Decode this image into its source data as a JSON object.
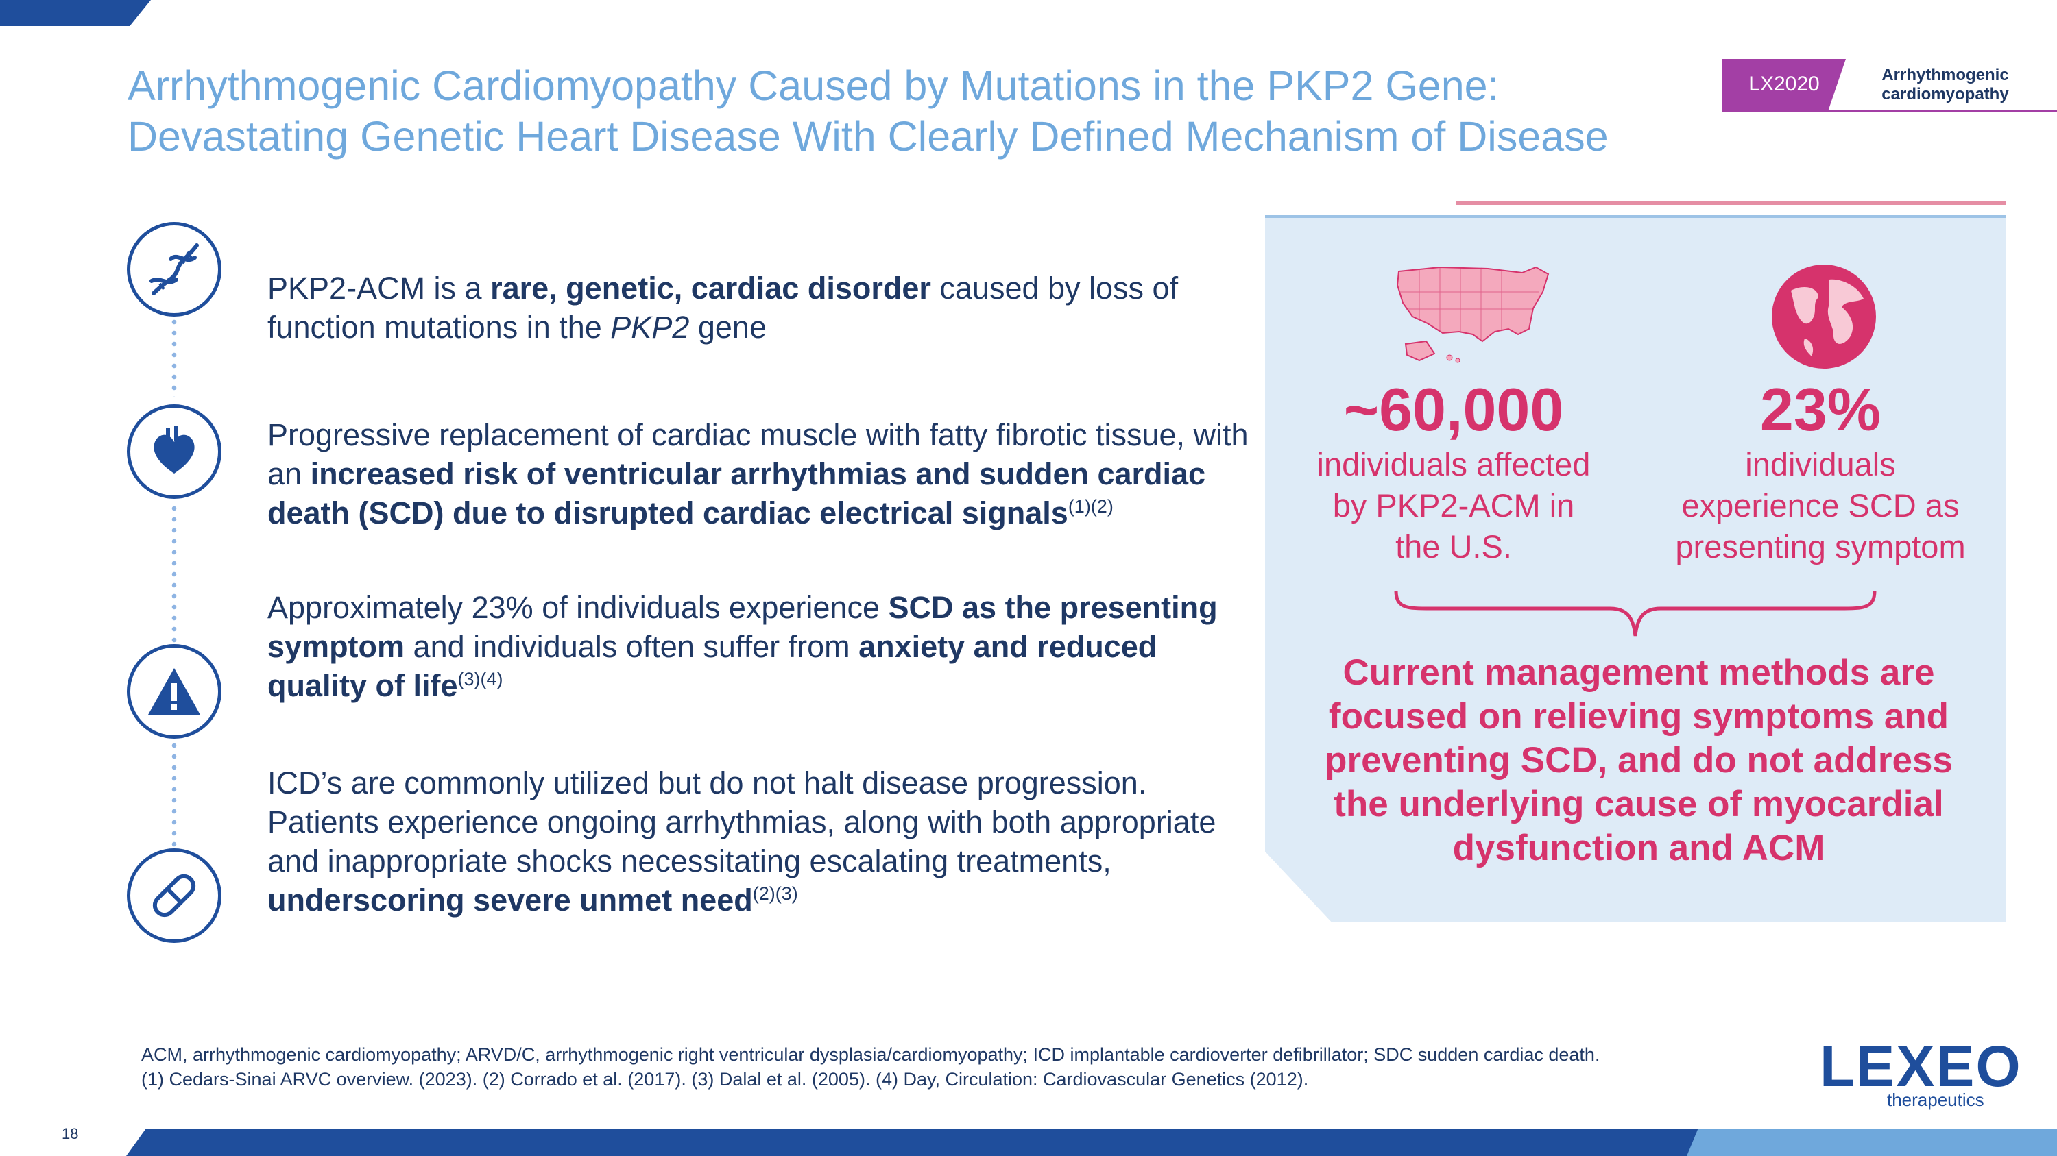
{
  "header": {
    "title_line1": "Arrhythmogenic Cardiomyopathy Caused by Mutations in the PKP2 Gene:",
    "title_line2": "Devastating Genetic Heart Disease With Clearly Defined Mechanism of Disease",
    "badge": "LX2020",
    "badge_label_line1": "Arrhythmogenic",
    "badge_label_line2": "cardiomyopathy"
  },
  "icons": [
    "dna-icon",
    "heart-icon",
    "warning-icon",
    "pill-icon"
  ],
  "bullets": {
    "b1": {
      "t1": "PKP2-ACM is a ",
      "b1": "rare, genetic, cardiac disorder",
      "t2": " caused by loss of function mutations in the ",
      "i1": "PKP2",
      "t3": " gene"
    },
    "b2": {
      "t1": "Progressive replacement of cardiac muscle with fatty fibrotic tissue, with an ",
      "b1": "increased risk of ventricular arrhythmias and sudden cardiac death (SCD) due to disrupted cardiac electrical signals",
      "sup": "(1)(2)"
    },
    "b3": {
      "t1": "Approximately 23% of individuals experience ",
      "b1": "SCD as the presenting symptom",
      "t2": " and individuals often suffer from ",
      "b2": "anxiety and reduced quality of life",
      "sup": "(3)(4)"
    },
    "b4": {
      "t1": "ICD’s are commonly utilized but do not halt disease progression. Patients experience ongoing arrhythmias, along with both appropriate and inappropriate shocks necessitating escalating treatments, ",
      "b1": "underscoring severe unmet need",
      "sup": "(2)(3)"
    }
  },
  "stats": {
    "left": {
      "number": "~60,000",
      "line1": "individuals affected",
      "line2": "by PKP2-ACM in",
      "line3": "the U.S."
    },
    "right": {
      "number": "23%",
      "line1": "individuals",
      "line2": "experience SCD as",
      "line3": "presenting symptom"
    }
  },
  "conclusion": {
    "line1": "Current management methods are",
    "line2": "focused on relieving symptoms and",
    "line3": "preventing SCD, and do not address",
    "line4": "the underlying cause of myocardial",
    "line5": "dysfunction and ACM"
  },
  "footer": {
    "abbreviations": "ACM, arrhythmogenic cardiomyopathy; ARVD/C, arrhythmogenic right ventricular dysplasia/cardiomyopathy; ICD implantable cardioverter defibrillator; SDC sudden cardiac death.",
    "references": "(1) Cedars-Sinai ARVC overview. (2023). (2) Corrado et al. (2017). (3) Dalal et al. (2005). (4) Day, Circulation: Cardiovascular Genetics (2012).",
    "page_number": "18"
  },
  "logo": {
    "name": "LEXEO",
    "sub": "therapeutics"
  },
  "colors": {
    "title": "#6fa8dc",
    "navy": "#1f3864",
    "accent_blue": "#1f4e9c",
    "pink": "#d6336c",
    "badge": "#a33fa5",
    "panel": "#deebf7"
  }
}
